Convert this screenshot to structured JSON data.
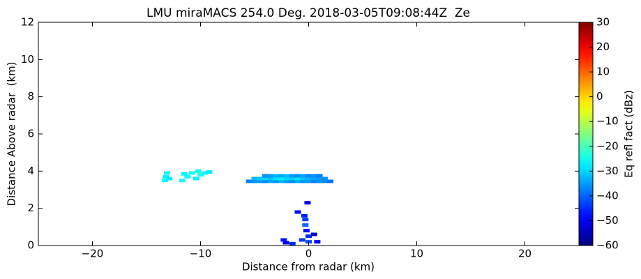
{
  "chart_data": {
    "type": "scatter",
    "title": "LMU miraMACS 254.0 Deg. 2018-03-05T09:08:44Z  Ze",
    "x_label": "Distance from radar (km)",
    "y_label": "Distance Above radar  (km)",
    "colorbar_label": "Eq refl fact (dBz)",
    "colormap": "jet",
    "xlim": [
      -25,
      25
    ],
    "xticks": [
      {
        "value": -20,
        "label": "−20"
      },
      {
        "value": -10,
        "label": "−10"
      },
      0,
      10,
      20
    ],
    "ylim": [
      0,
      12
    ],
    "yticks": [
      0,
      2,
      4,
      6,
      8,
      10,
      12
    ],
    "clim": [
      -60,
      30
    ],
    "cticks": [
      {
        "value": -60,
        "label": "−60"
      },
      {
        "value": -50,
        "label": "−50"
      },
      {
        "value": -40,
        "label": "−40"
      },
      {
        "value": -30,
        "label": "−30"
      },
      {
        "value": -20,
        "label": "−20"
      },
      {
        "value": -10,
        "label": "−10"
      },
      0,
      10,
      20,
      30
    ],
    "x": [
      -5.5,
      -5,
      -4.5,
      -4,
      -3.5,
      -3,
      -2.5,
      -2,
      -1.5,
      -1,
      -0.5,
      0,
      0.5,
      1,
      1.5,
      2,
      -5,
      -4.5,
      -4,
      -3.5,
      -3,
      -2.5,
      -2,
      -1.5,
      -1,
      -0.5,
      0,
      0.5,
      1,
      1.5,
      -4,
      -3.5,
      -3,
      -2.5,
      -2,
      -1.5,
      -1,
      -0.5,
      0,
      0.5,
      1,
      -13.3,
      -13.2,
      -13.1,
      -12.9,
      -11.7,
      -11.2,
      -10.8,
      -10.4,
      -10,
      -9.6,
      -9.2,
      -10.2,
      -11.5,
      0,
      0,
      -0.2,
      -0.3,
      -0.3,
      -0.4,
      0.8,
      -2.3,
      -2.1,
      -1.5,
      -0.6,
      -1.0,
      0.5,
      -0.1
    ],
    "y": [
      3.45,
      3.45,
      3.45,
      3.45,
      3.45,
      3.45,
      3.45,
      3.45,
      3.45,
      3.45,
      3.45,
      3.45,
      3.45,
      3.45,
      3.45,
      3.45,
      3.6,
      3.6,
      3.6,
      3.6,
      3.6,
      3.6,
      3.6,
      3.6,
      3.6,
      3.6,
      3.6,
      3.6,
      3.6,
      3.6,
      3.75,
      3.75,
      3.75,
      3.75,
      3.75,
      3.75,
      3.75,
      3.75,
      3.75,
      3.75,
      3.75,
      3.5,
      3.7,
      3.9,
      3.6,
      3.5,
      3.7,
      3.9,
      3.6,
      3.8,
      3.9,
      3.95,
      4.0,
      3.85,
      0.2,
      0.5,
      0.8,
      1.1,
      1.4,
      1.6,
      0.2,
      0.3,
      0.15,
      0.1,
      0.3,
      1.8,
      0.6,
      2.3
    ],
    "values": [
      -38,
      -36,
      -35,
      -37,
      -34,
      -36,
      -33,
      -35,
      -37,
      -34,
      -36,
      -35,
      -38,
      -36,
      -37,
      -39,
      -33,
      -31,
      -30,
      -32,
      -29,
      -28,
      -30,
      -31,
      -29,
      -32,
      -33,
      -34,
      -35,
      -36,
      -36,
      -35,
      -33,
      -34,
      -32,
      -35,
      -36,
      -34,
      -37,
      -36,
      -38,
      -26,
      -27,
      -25,
      -28,
      -24,
      -26,
      -25,
      -27,
      -24,
      -26,
      -28,
      -25,
      -27,
      -42,
      -45,
      -48,
      -40,
      -43,
      -46,
      -50,
      -47,
      -52,
      -45,
      -44,
      -48,
      -53,
      -50
    ]
  }
}
